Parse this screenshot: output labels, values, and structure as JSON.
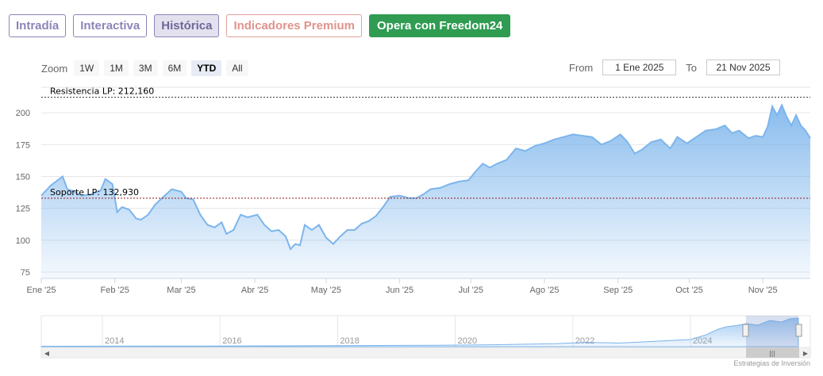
{
  "tabs": [
    {
      "label": "Intradía"
    },
    {
      "label": "Interactiva"
    },
    {
      "label": "Histórica"
    },
    {
      "label": "Indicadores Premium"
    },
    {
      "label": "Opera con Freedom24"
    }
  ],
  "toolbar": {
    "zoom_label": "Zoom",
    "zoom_buttons": [
      "1W",
      "1M",
      "3M",
      "6M",
      "YTD",
      "All"
    ],
    "zoom_selected": "YTD",
    "from_label": "From",
    "from_value": "1 Ene 2025",
    "to_label": "To",
    "to_value": "21 Nov 2025"
  },
  "chart_data": {
    "type": "area",
    "yaxis": {
      "min": 70,
      "max": 220,
      "ticks": [
        75,
        100,
        125,
        150,
        175,
        200
      ]
    },
    "xaxis": {
      "range": [
        "2025-01-01",
        "2025-11-21"
      ],
      "ticks": [
        {
          "label": "Ene '25",
          "date": "2025-01-01"
        },
        {
          "label": "Feb '25",
          "date": "2025-02-01"
        },
        {
          "label": "Mar '25",
          "date": "2025-03-01"
        },
        {
          "label": "Abr '25",
          "date": "2025-04-01"
        },
        {
          "label": "May '25",
          "date": "2025-05-01"
        },
        {
          "label": "Jun '25",
          "date": "2025-06-01"
        },
        {
          "label": "Jul '25",
          "date": "2025-07-01"
        },
        {
          "label": "Ago '25",
          "date": "2025-08-01"
        },
        {
          "label": "Sep '25",
          "date": "2025-09-01"
        },
        {
          "label": "Oct '25",
          "date": "2025-10-01"
        },
        {
          "label": "Nov '25",
          "date": "2025-11-01"
        }
      ]
    },
    "plot_lines": [
      {
        "label": "Resistencia LP: 212,160",
        "value": 212.16,
        "color": "#333333"
      },
      {
        "label": "Soporte LP: 132,930",
        "value": 132.93,
        "color": "#8b1a1a"
      }
    ],
    "series": [
      {
        "color": "#7cb5ec",
        "points": [
          [
            "2025-01-01",
            135
          ],
          [
            "2025-01-05",
            143
          ],
          [
            "2025-01-10",
            150
          ],
          [
            "2025-01-12",
            140
          ],
          [
            "2025-01-15",
            138
          ],
          [
            "2025-01-18",
            135
          ],
          [
            "2025-01-22",
            136
          ],
          [
            "2025-01-26",
            139
          ],
          [
            "2025-01-28",
            148
          ],
          [
            "2025-01-31",
            144
          ],
          [
            "2025-02-02",
            122
          ],
          [
            "2025-02-04",
            126
          ],
          [
            "2025-02-07",
            124
          ],
          [
            "2025-02-10",
            117
          ],
          [
            "2025-02-12",
            116
          ],
          [
            "2025-02-15",
            120
          ],
          [
            "2025-02-18",
            128
          ],
          [
            "2025-02-22",
            135
          ],
          [
            "2025-02-25",
            140
          ],
          [
            "2025-03-01",
            138
          ],
          [
            "2025-03-03",
            133
          ],
          [
            "2025-03-06",
            132
          ],
          [
            "2025-03-09",
            120
          ],
          [
            "2025-03-12",
            112
          ],
          [
            "2025-03-15",
            110
          ],
          [
            "2025-03-18",
            114
          ],
          [
            "2025-03-20",
            105
          ],
          [
            "2025-03-23",
            108
          ],
          [
            "2025-03-26",
            120
          ],
          [
            "2025-03-29",
            118
          ],
          [
            "2025-04-02",
            120
          ],
          [
            "2025-04-05",
            112
          ],
          [
            "2025-04-08",
            107
          ],
          [
            "2025-04-11",
            108
          ],
          [
            "2025-04-14",
            103
          ],
          [
            "2025-04-16",
            93
          ],
          [
            "2025-04-18",
            97
          ],
          [
            "2025-04-20",
            96
          ],
          [
            "2025-04-22",
            112
          ],
          [
            "2025-04-25",
            108
          ],
          [
            "2025-04-28",
            112
          ],
          [
            "2025-05-01",
            102
          ],
          [
            "2025-05-04",
            97
          ],
          [
            "2025-05-07",
            103
          ],
          [
            "2025-05-10",
            108
          ],
          [
            "2025-05-13",
            108
          ],
          [
            "2025-05-16",
            113
          ],
          [
            "2025-05-19",
            115
          ],
          [
            "2025-05-22",
            119
          ],
          [
            "2025-05-25",
            126
          ],
          [
            "2025-05-28",
            134
          ],
          [
            "2025-06-01",
            135
          ],
          [
            "2025-06-05",
            133
          ],
          [
            "2025-06-08",
            133
          ],
          [
            "2025-06-11",
            136
          ],
          [
            "2025-06-14",
            140
          ],
          [
            "2025-06-18",
            141
          ],
          [
            "2025-06-22",
            144
          ],
          [
            "2025-06-26",
            146
          ],
          [
            "2025-06-30",
            147
          ],
          [
            "2025-07-03",
            154
          ],
          [
            "2025-07-06",
            160
          ],
          [
            "2025-07-09",
            157
          ],
          [
            "2025-07-12",
            160
          ],
          [
            "2025-07-16",
            163
          ],
          [
            "2025-07-20",
            172
          ],
          [
            "2025-07-24",
            170
          ],
          [
            "2025-07-28",
            174
          ],
          [
            "2025-08-01",
            176
          ],
          [
            "2025-08-05",
            179
          ],
          [
            "2025-08-09",
            181
          ],
          [
            "2025-08-13",
            183
          ],
          [
            "2025-08-17",
            182
          ],
          [
            "2025-08-21",
            181
          ],
          [
            "2025-08-25",
            175
          ],
          [
            "2025-08-29",
            178
          ],
          [
            "2025-09-02",
            183
          ],
          [
            "2025-09-05",
            177
          ],
          [
            "2025-09-08",
            168
          ],
          [
            "2025-09-11",
            171
          ],
          [
            "2025-09-15",
            177
          ],
          [
            "2025-09-19",
            179
          ],
          [
            "2025-09-23",
            172
          ],
          [
            "2025-09-26",
            181
          ],
          [
            "2025-09-30",
            176
          ],
          [
            "2025-10-04",
            181
          ],
          [
            "2025-10-08",
            186
          ],
          [
            "2025-10-12",
            187
          ],
          [
            "2025-10-16",
            190
          ],
          [
            "2025-10-19",
            184
          ],
          [
            "2025-10-22",
            186
          ],
          [
            "2025-10-26",
            180
          ],
          [
            "2025-10-29",
            182
          ],
          [
            "2025-11-01",
            181
          ],
          [
            "2025-11-03",
            189
          ],
          [
            "2025-11-05",
            205
          ],
          [
            "2025-11-07",
            198
          ],
          [
            "2025-11-09",
            206
          ],
          [
            "2025-11-11",
            197
          ],
          [
            "2025-11-13",
            190
          ],
          [
            "2025-11-15",
            198
          ],
          [
            "2025-11-17",
            190
          ],
          [
            "2025-11-19",
            186
          ],
          [
            "2025-11-21",
            180
          ]
        ]
      }
    ],
    "navigator": {
      "years": [
        "2014",
        "2016",
        "2018",
        "2020",
        "2022",
        "2024"
      ]
    }
  },
  "credit": "Estrategias de Inversión"
}
